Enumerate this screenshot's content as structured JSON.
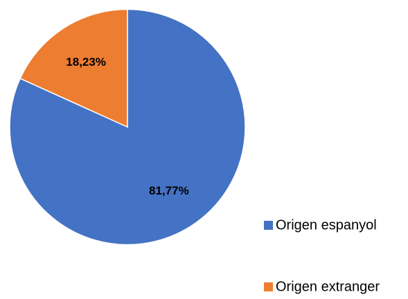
{
  "chart_data": {
    "type": "pie",
    "categories": [
      "Origen espanyol",
      "Origen extranger"
    ],
    "values": [
      81.77,
      18.23
    ],
    "value_labels": [
      "81,77%",
      "18,23%"
    ],
    "colors": [
      "#4472c4",
      "#ed7d31"
    ],
    "legend": "right"
  }
}
